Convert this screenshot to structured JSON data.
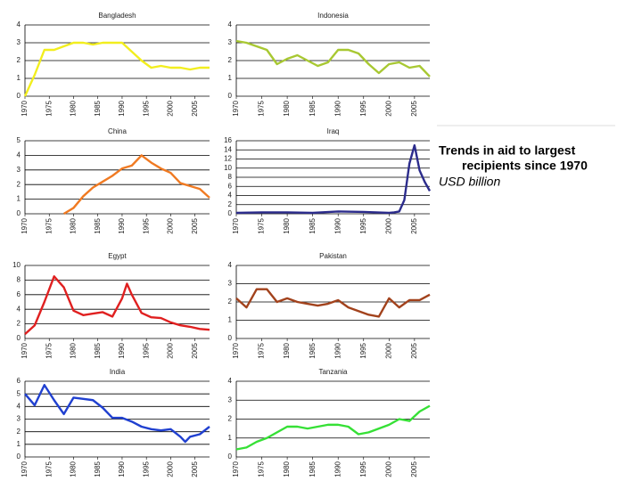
{
  "caption": {
    "title": "Trends in aid to largest",
    "title2": "recipients since 1970",
    "subtitle": "USD billion"
  },
  "chart_data": [
    {
      "type": "line",
      "title": "Bangladesh",
      "color": "#f2ee1e",
      "xlim": [
        1970,
        2008
      ],
      "xticks": [
        1970,
        1975,
        1980,
        1985,
        1990,
        1995,
        2000,
        2005
      ],
      "ylim": [
        0,
        4
      ],
      "yticks": [
        0,
        1,
        2,
        3,
        4
      ],
      "grid": true,
      "x": [
        1970,
        1972,
        1974,
        1976,
        1978,
        1980,
        1982,
        1984,
        1986,
        1988,
        1990,
        1992,
        1994,
        1996,
        1998,
        2000,
        2002,
        2004,
        2006,
        2008
      ],
      "values": [
        0.0,
        1.2,
        2.6,
        2.6,
        2.8,
        3.0,
        3.0,
        2.9,
        3.0,
        3.0,
        3.0,
        2.5,
        2.0,
        1.6,
        1.7,
        1.6,
        1.6,
        1.5,
        1.6,
        1.6
      ]
    },
    {
      "type": "line",
      "title": "Indonesia",
      "color": "#a8c832",
      "xlim": [
        1970,
        2008
      ],
      "xticks": [
        1970,
        1975,
        1980,
        1985,
        1990,
        1995,
        2000,
        2005
      ],
      "ylim": [
        0,
        4
      ],
      "yticks": [
        0,
        1,
        2,
        3,
        4
      ],
      "grid": true,
      "x": [
        1970,
        1972,
        1974,
        1976,
        1978,
        1980,
        1982,
        1984,
        1986,
        1988,
        1990,
        1992,
        1994,
        1996,
        1998,
        2000,
        2002,
        2004,
        2006,
        2008
      ],
      "values": [
        3.1,
        3.0,
        2.8,
        2.6,
        1.8,
        2.1,
        2.3,
        2.0,
        1.7,
        1.9,
        2.6,
        2.6,
        2.4,
        1.8,
        1.3,
        1.8,
        1.9,
        1.6,
        1.7,
        1.1
      ]
    },
    {
      "type": "line",
      "title": "China",
      "color": "#f07a22",
      "xlim": [
        1970,
        2008
      ],
      "xticks": [
        1970,
        1975,
        1980,
        1985,
        1990,
        1995,
        2000,
        2005
      ],
      "ylim": [
        0,
        5
      ],
      "yticks": [
        0,
        1,
        2,
        3,
        4,
        5
      ],
      "grid": true,
      "x": [
        1978,
        1980,
        1982,
        1984,
        1986,
        1988,
        1990,
        1992,
        1994,
        1996,
        1998,
        2000,
        2002,
        2004,
        2006,
        2008
      ],
      "values": [
        0.0,
        0.4,
        1.2,
        1.8,
        2.2,
        2.6,
        3.1,
        3.3,
        4.0,
        3.5,
        3.1,
        2.8,
        2.1,
        1.9,
        1.7,
        1.1
      ]
    },
    {
      "type": "line",
      "title": "Iraq",
      "color": "#2c2c8c",
      "xlim": [
        1970,
        2008
      ],
      "xticks": [
        1970,
        1975,
        1980,
        1985,
        1990,
        1995,
        2000,
        2005
      ],
      "ylim": [
        0,
        16
      ],
      "yticks": [
        0,
        2,
        4,
        6,
        8,
        10,
        12,
        14,
        16
      ],
      "grid": true,
      "x": [
        1970,
        1975,
        1980,
        1985,
        1990,
        1995,
        2000,
        2001,
        2002,
        2003,
        2004,
        2005,
        2006,
        2007,
        2008
      ],
      "values": [
        0.2,
        0.3,
        0.3,
        0.2,
        0.5,
        0.4,
        0.2,
        0.3,
        0.5,
        3,
        11,
        15,
        9.5,
        7,
        5
      ]
    },
    {
      "type": "line",
      "title": "Egypt",
      "color": "#e02020",
      "xlim": [
        1970,
        2008
      ],
      "xticks": [
        1970,
        1975,
        1980,
        1985,
        1990,
        1995,
        2000,
        2005
      ],
      "ylim": [
        0,
        10
      ],
      "yticks": [
        0,
        2,
        4,
        6,
        8,
        10
      ],
      "grid": true,
      "x": [
        1970,
        1972,
        1974,
        1976,
        1978,
        1980,
        1982,
        1984,
        1986,
        1988,
        1990,
        1991,
        1992,
        1994,
        1996,
        1998,
        2000,
        2002,
        2004,
        2006,
        2008
      ],
      "values": [
        0.6,
        1.8,
        5,
        8.5,
        7,
        3.8,
        3.2,
        3.4,
        3.6,
        3,
        5.5,
        7.5,
        6,
        3.5,
        2.9,
        2.8,
        2.2,
        1.8,
        1.6,
        1.3,
        1.2
      ]
    },
    {
      "type": "line",
      "title": "Pakistan",
      "color": "#a2421c",
      "xlim": [
        1970,
        2008
      ],
      "xticks": [
        1970,
        1975,
        1980,
        1985,
        1990,
        1995,
        2000,
        2005
      ],
      "ylim": [
        0,
        4
      ],
      "yticks": [
        0,
        1,
        2,
        3,
        4
      ],
      "grid": true,
      "x": [
        1970,
        1972,
        1974,
        1976,
        1978,
        1980,
        1982,
        1984,
        1986,
        1988,
        1990,
        1992,
        1994,
        1996,
        1998,
        2000,
        2002,
        2004,
        2006,
        2008
      ],
      "values": [
        2.2,
        1.7,
        2.7,
        2.7,
        2.0,
        2.2,
        2.0,
        1.9,
        1.8,
        1.9,
        2.1,
        1.7,
        1.5,
        1.3,
        1.2,
        2.2,
        1.7,
        2.1,
        2.1,
        2.4
      ]
    },
    {
      "type": "line",
      "title": "India",
      "color": "#2040d0",
      "xlim": [
        1970,
        2008
      ],
      "xticks": [
        1970,
        1975,
        1980,
        1985,
        1990,
        1995,
        2000,
        2005
      ],
      "ylim": [
        0,
        6
      ],
      "yticks": [
        0,
        1,
        2,
        3,
        4,
        5,
        6
      ],
      "grid": true,
      "x": [
        1970,
        1972,
        1974,
        1976,
        1978,
        1980,
        1982,
        1984,
        1986,
        1988,
        1990,
        1992,
        1994,
        1996,
        1998,
        2000,
        2002,
        2003,
        2004,
        2006,
        2008
      ],
      "values": [
        5.0,
        4.1,
        5.7,
        4.5,
        3.4,
        4.7,
        4.6,
        4.5,
        3.9,
        3.1,
        3.1,
        2.8,
        2.4,
        2.2,
        2.1,
        2.2,
        1.6,
        1.2,
        1.6,
        1.8,
        2.4
      ]
    },
    {
      "type": "line",
      "title": "Tanzania",
      "color": "#36e036",
      "xlim": [
        1970,
        2008
      ],
      "xticks": [
        1970,
        1975,
        1980,
        1985,
        1990,
        1995,
        2000,
        2005
      ],
      "ylim": [
        0,
        4
      ],
      "yticks": [
        0,
        1,
        2,
        3,
        4
      ],
      "grid": true,
      "x": [
        1970,
        1972,
        1974,
        1976,
        1978,
        1980,
        1982,
        1984,
        1986,
        1988,
        1990,
        1992,
        1994,
        1996,
        1998,
        2000,
        2002,
        2004,
        2006,
        2008
      ],
      "values": [
        0.4,
        0.5,
        0.8,
        1.0,
        1.3,
        1.6,
        1.6,
        1.5,
        1.6,
        1.7,
        1.7,
        1.6,
        1.2,
        1.3,
        1.5,
        1.7,
        2.0,
        1.9,
        2.4,
        2.7
      ]
    }
  ]
}
